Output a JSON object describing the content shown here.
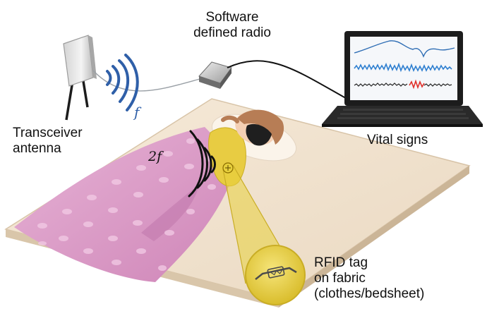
{
  "labels": {
    "sdr_line1": "Software",
    "sdr_line2": "defined radio",
    "transceiver_line1": "Transceiver",
    "transceiver_line2": "antenna",
    "vital_signs": "Vital signs",
    "rfid_line1": "RFID tag",
    "rfid_line2": "on fabric",
    "rfid_line3": "(clothes/bedsheet)",
    "freq_f": "f",
    "freq_2f": "2f"
  },
  "colors": {
    "wave_tx": "#2f5fa8",
    "wave_rx": "#111111",
    "bedsheet": "#d99ac6",
    "tag_yellow": "#e7cf3c",
    "trace_top": "#2e6db4",
    "trace_mid": "#2e7fd0",
    "trace_bottom_highlight": "#e0302a"
  }
}
